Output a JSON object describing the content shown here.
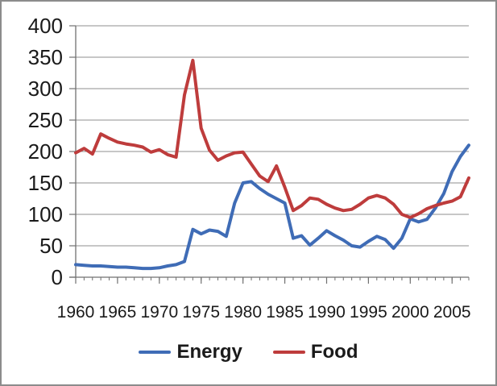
{
  "window": {
    "background_color": "#FFFFFF",
    "border_color": "#8C8C8C"
  },
  "chart_data": {
    "type": "line",
    "title": "",
    "xlabel": "",
    "ylabel": "",
    "x": [
      1960,
      1961,
      1962,
      1963,
      1964,
      1965,
      1966,
      1967,
      1968,
      1969,
      1970,
      1971,
      1972,
      1973,
      1974,
      1975,
      1976,
      1977,
      1978,
      1979,
      1980,
      1981,
      1982,
      1983,
      1984,
      1985,
      1986,
      1987,
      1988,
      1989,
      1990,
      1991,
      1992,
      1993,
      1994,
      1995,
      1996,
      1997,
      1998,
      1999,
      2000,
      2001,
      2002,
      2003,
      2004,
      2005,
      2006,
      2007
    ],
    "series": [
      {
        "name": "Energy",
        "color": "#3F6CB6",
        "values": [
          20,
          19,
          18,
          18,
          17,
          16,
          16,
          15,
          14,
          14,
          15,
          18,
          20,
          25,
          76,
          69,
          75,
          73,
          65,
          118,
          150,
          152,
          141,
          132,
          125,
          118,
          62,
          66,
          51,
          62,
          74,
          66,
          59,
          50,
          48,
          57,
          65,
          60,
          46,
          62,
          93,
          88,
          92,
          110,
          133,
          168,
          192,
          210
        ]
      },
      {
        "name": "Food",
        "color": "#BE3C3C",
        "values": [
          198,
          205,
          196,
          228,
          221,
          215,
          212,
          210,
          207,
          199,
          203,
          195,
          191,
          290,
          345,
          237,
          202,
          186,
          193,
          198,
          199,
          180,
          161,
          152,
          177,
          143,
          106,
          114,
          126,
          124,
          116,
          110,
          106,
          108,
          116,
          126,
          130,
          126,
          116,
          100,
          95,
          101,
          109,
          114,
          118,
          121,
          128,
          158
        ]
      }
    ],
    "x_axis": {
      "tick_labels": [
        "1960",
        "1965",
        "1970",
        "1975",
        "1980",
        "1985",
        "1990",
        "1995",
        "2000",
        "2005"
      ],
      "major_tick_interval": 5,
      "minor_tick_interval": 1
    },
    "y_axis": {
      "min": 0,
      "max": 400,
      "tick_step": 50,
      "tick_labels": [
        "0",
        "50",
        "100",
        "150",
        "200",
        "250",
        "300",
        "350",
        "400"
      ]
    },
    "grid": {
      "horizontal": true,
      "vertical": false,
      "color": "#8F8F8F"
    },
    "axis_color": "#707070",
    "text_color": "#1A1A1A",
    "legend": {
      "position": "bottom"
    }
  }
}
